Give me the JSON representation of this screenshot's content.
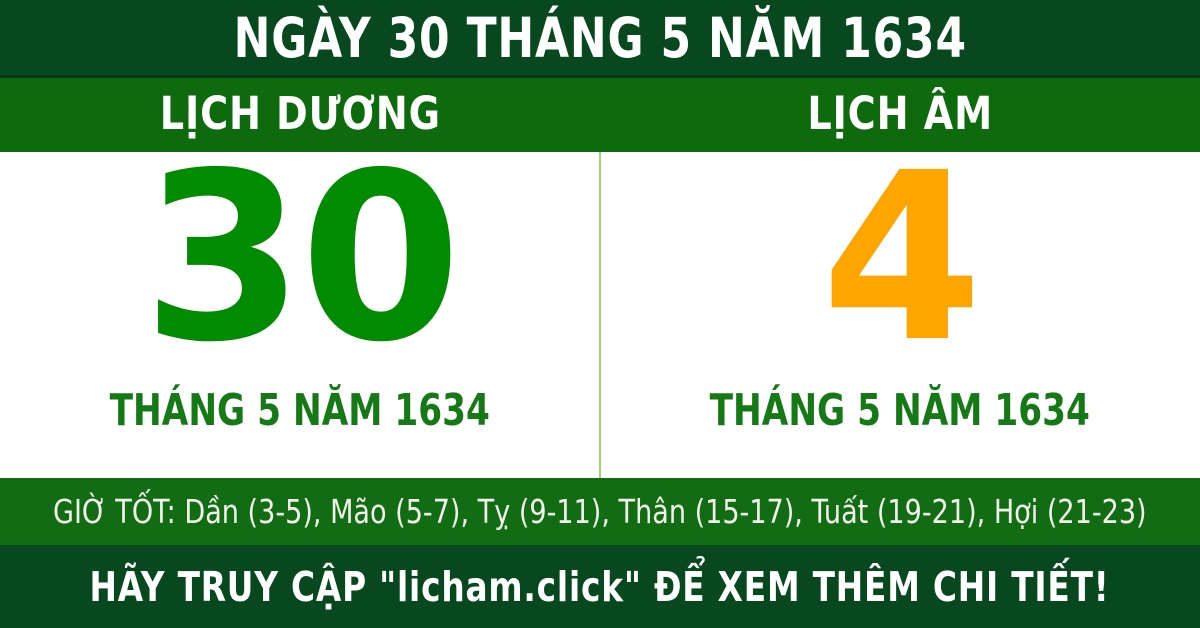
{
  "colors": {
    "dark_green": "#07481f",
    "medium_green": "#0e6b0d",
    "good_hours_green": "#116c13",
    "solar_day": "#008b00",
    "lunar_day": "#ffa500",
    "month_text": "#157a15",
    "divider": "#a9d06f",
    "bar_separator": "#04351a",
    "text_white": "#ffffff",
    "good_hours_text": "#f2f2ea"
  },
  "header": {
    "title": "NGÀY 30 THÁNG 5 NĂM 1634"
  },
  "calendar": {
    "solar": {
      "label": "LỊCH DƯƠNG",
      "day": "30",
      "month_year": "THÁNG 5 NĂM 1634"
    },
    "lunar": {
      "label": "LỊCH ÂM",
      "day": "4",
      "month_year": "THÁNG 5 NĂM 1634"
    }
  },
  "good_hours": {
    "text": "GIỜ TỐT: Dần (3-5), Mão (5-7), Tỵ (9-11), Thân (15-17), Tuất (19-21), Hợi (21-23)"
  },
  "footer": {
    "text": "HÃY TRUY CẬP \"licham.click\" ĐỂ XEM THÊM CHI TIẾT!"
  }
}
